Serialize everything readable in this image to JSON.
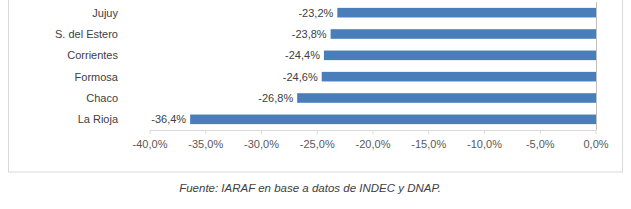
{
  "chart_data": {
    "type": "bar",
    "orientation": "horizontal",
    "categories": [
      "Jujuy",
      "S. del Estero",
      "Corrientes",
      "Formosa",
      "Chaco",
      "La Rioja"
    ],
    "values": [
      -23.2,
      -23.8,
      -24.4,
      -24.6,
      -26.8,
      -36.4
    ],
    "value_labels": [
      "-23,2%",
      "-23,8%",
      "-24,4%",
      "-24,6%",
      "-26,8%",
      "-36,4%"
    ],
    "color": "#4a7ebb",
    "xlim": [
      -40,
      0
    ],
    "xticks": [
      {
        "value": -40,
        "label": "-40,0%"
      },
      {
        "value": -35,
        "label": "-35,0%"
      },
      {
        "value": -30,
        "label": "-30,0%"
      },
      {
        "value": -25,
        "label": "-25,0%"
      },
      {
        "value": -20,
        "label": "-20,0%"
      },
      {
        "value": -15,
        "label": "-15,0%"
      },
      {
        "value": -10,
        "label": "-10,0%"
      },
      {
        "value": -5,
        "label": "-5,0%"
      },
      {
        "value": 0,
        "label": "0,0%"
      }
    ],
    "grid": false,
    "data_labels": true,
    "annotations": [
      "Fuente: IARAF en base a datos de INDEC y DNAP."
    ]
  }
}
